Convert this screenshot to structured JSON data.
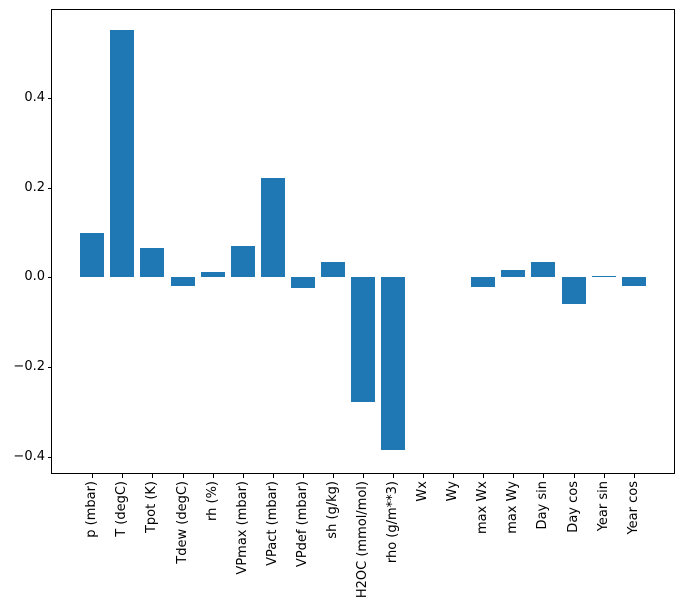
{
  "chart_data": {
    "type": "bar",
    "title": "",
    "xlabel": "",
    "ylabel": "",
    "categories": [
      "p (mbar)",
      "T (degC)",
      "Tpot (K)",
      "Tdew (degC)",
      "rh (%)",
      "VPmax (mbar)",
      "VPact (mbar)",
      "VPdef (mbar)",
      "sh (g/kg)",
      "H2OC (mmol/mol)",
      "rho (g/m**3)",
      "Wx",
      "Wy",
      "max Wx",
      "max Wy",
      "Day sin",
      "Day cos",
      "Year sin",
      "Year cos"
    ],
    "values": [
      0.1,
      0.55,
      0.065,
      -0.02,
      0.013,
      0.069,
      0.221,
      -0.023,
      0.034,
      -0.276,
      -0.383,
      0.0,
      0.0,
      -0.021,
      0.016,
      0.035,
      -0.058,
      0.004,
      -0.018
    ],
    "bar_color": "#1f77b4",
    "bar_width": 0.8,
    "xlim": [
      -1.34,
      19.34
    ],
    "ylim": [
      -0.435,
      0.595
    ],
    "yticks": [
      {
        "value": -0.4,
        "label": "−0.4"
      },
      {
        "value": -0.2,
        "label": "−0.2"
      },
      {
        "value": 0.0,
        "label": "0.0"
      },
      {
        "value": 0.2,
        "label": "0.2"
      },
      {
        "value": 0.4,
        "label": "0.4"
      }
    ],
    "grid": false,
    "legend_position": "none",
    "axis_color": "#000000",
    "text_color": "#000000",
    "background_color": "#ffffff"
  }
}
